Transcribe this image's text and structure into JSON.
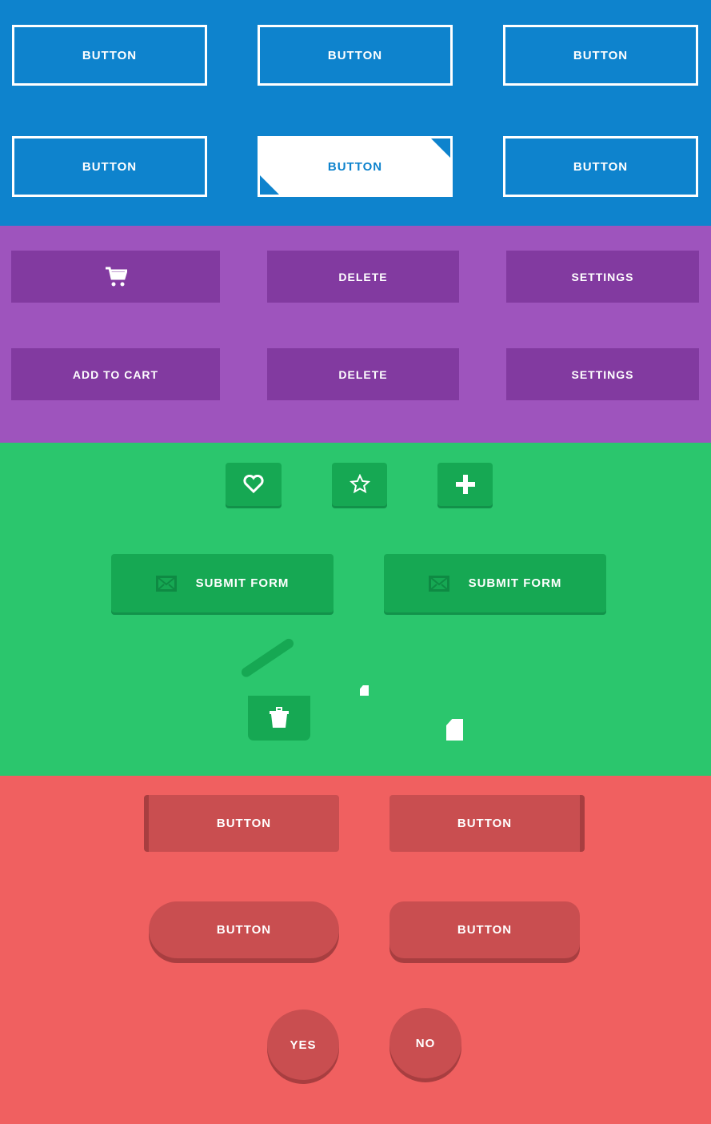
{
  "blue": {
    "buttons": [
      "BUTTON",
      "BUTTON",
      "BUTTON",
      "BUTTON",
      "BUTTON",
      "BUTTON"
    ]
  },
  "purple": {
    "row1": {
      "cart_icon": "cart-icon",
      "delete": "DELETE",
      "settings": "SETTINGS"
    },
    "row2": {
      "add_to_cart": "ADD TO CART",
      "delete": "DELETE",
      "settings": "SETTINGS"
    }
  },
  "green": {
    "icons": [
      "heart-icon",
      "star-icon",
      "plus-icon"
    ],
    "submit1": "SUBMIT FORM",
    "submit2": "SUBMIT FORM",
    "trash_icon": "trash-icon",
    "file_icon": "file-icon"
  },
  "red": {
    "buttons": [
      "BUTTON",
      "BUTTON",
      "BUTTON",
      "BUTTON"
    ],
    "yes": "YES",
    "no": "NO"
  },
  "colors": {
    "blue": "#0e83cd",
    "purple": "#9e54bd",
    "green": "#2bc66d",
    "red": "#f06060"
  }
}
